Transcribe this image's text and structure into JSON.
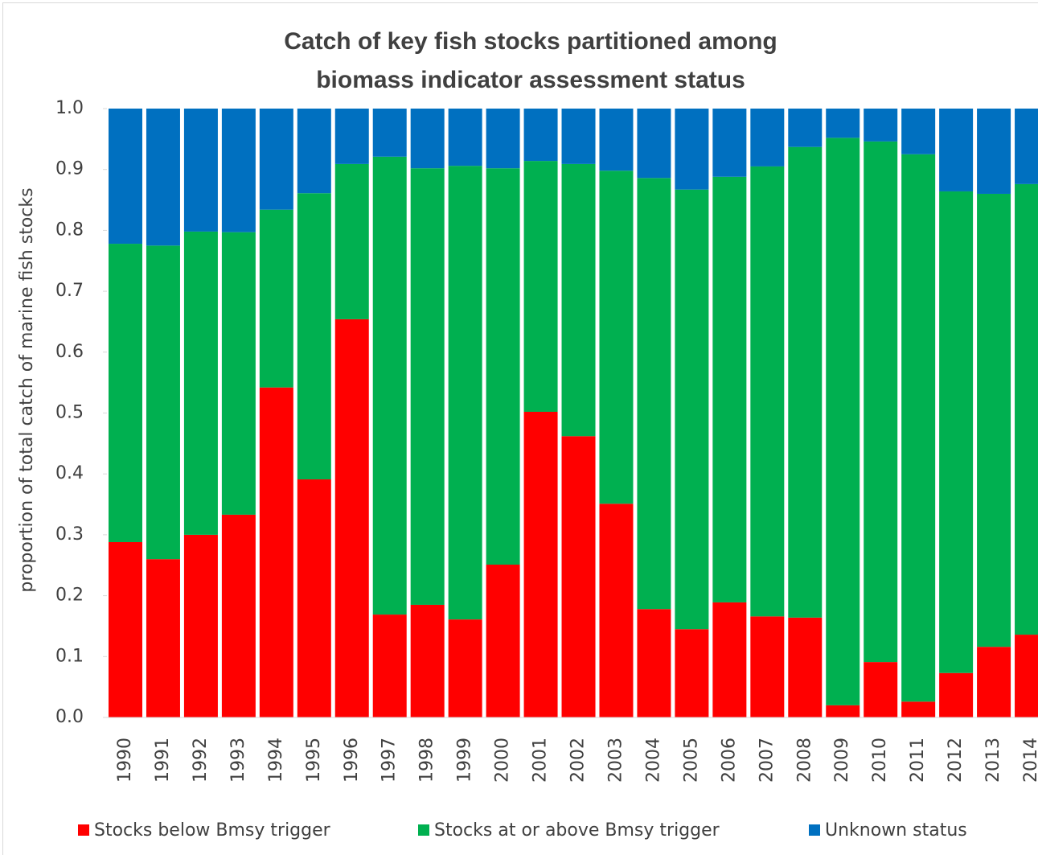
{
  "chart_data": {
    "type": "stacked_bar",
    "title": "Catch of key fish stocks partitioned among biomass indicator assessment status",
    "y_label": "proportion of total catch of marine fish stocks",
    "categories": [
      "1990",
      "1991",
      "1992",
      "1993",
      "1994",
      "1995",
      "1996",
      "1997",
      "1998",
      "1999",
      "2000",
      "2001",
      "2002",
      "2003",
      "2004",
      "2005",
      "2006",
      "2007",
      "2008",
      "2009",
      "2010",
      "2011",
      "2012",
      "2013",
      "2014"
    ],
    "series": [
      {
        "name": "Stocks below Bmsy trigger",
        "color": "#ff0000",
        "values": [
          0.288,
          0.26,
          0.3,
          0.333,
          0.542,
          0.391,
          0.654,
          0.169,
          0.185,
          0.161,
          0.251,
          0.502,
          0.462,
          0.351,
          0.178,
          0.145,
          0.189,
          0.166,
          0.164,
          0.02,
          0.091,
          0.026,
          0.073,
          0.116,
          0.136
        ]
      },
      {
        "name": "Stocks at or above Bmsy trigger",
        "color": "#00b050",
        "values": [
          0.49,
          0.515,
          0.498,
          0.464,
          0.292,
          0.47,
          0.255,
          0.752,
          0.717,
          0.745,
          0.651,
          0.412,
          0.447,
          0.547,
          0.708,
          0.722,
          0.699,
          0.739,
          0.773,
          0.932,
          0.855,
          0.899,
          0.791,
          0.744,
          0.74
        ]
      },
      {
        "name": "Unknown status",
        "color": "#0070c0",
        "values": [
          0.222,
          0.225,
          0.202,
          0.203,
          0.166,
          0.139,
          0.091,
          0.079,
          0.098,
          0.094,
          0.098,
          0.086,
          0.091,
          0.102,
          0.114,
          0.133,
          0.112,
          0.095,
          0.063,
          0.048,
          0.054,
          0.075,
          0.136,
          0.14,
          0.124
        ]
      }
    ],
    "ylim": [
      0,
      1
    ],
    "yticks": [
      {
        "value": 0,
        "label": "0.0"
      },
      0.1,
      0.2,
      0.3,
      0.4,
      0.5,
      0.6,
      0.7,
      0.8,
      0.9,
      {
        "value": 1,
        "label": "1.0"
      }
    ],
    "legend": "bottom"
  }
}
